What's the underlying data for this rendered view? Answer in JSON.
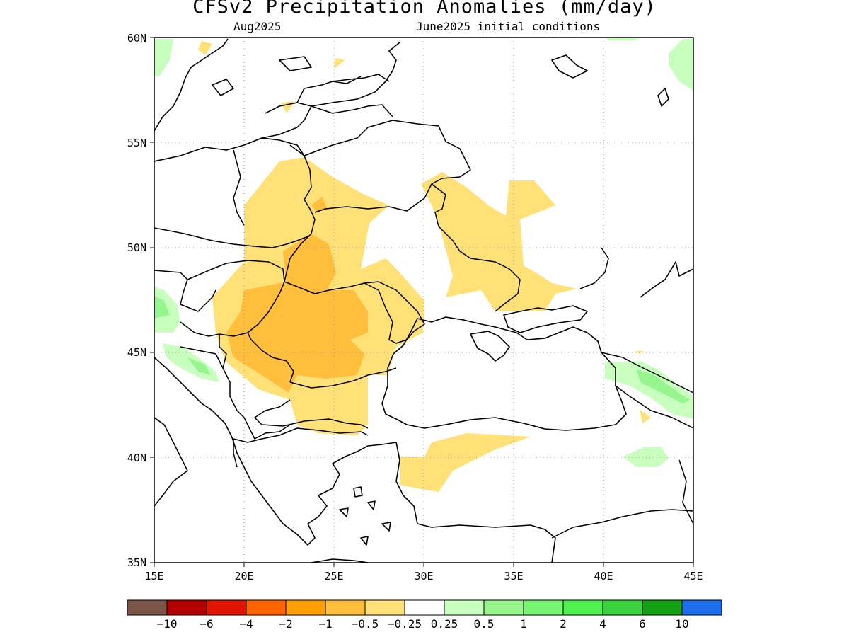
{
  "title": "CFSv2 Precipitation Anomalies (mm/day)",
  "valid_month": "Aug2025",
  "initial_conditions": "June2025 initial conditions",
  "map": {
    "lon_range": [
      15,
      45
    ],
    "lat_range": [
      35,
      60
    ],
    "lon_ticks": [
      "15E",
      "20E",
      "25E",
      "30E",
      "35E",
      "40E",
      "45E"
    ],
    "lat_ticks": [
      "35N",
      "40N",
      "45N",
      "50N",
      "55N",
      "60N"
    ],
    "gridlines": "dotted"
  },
  "colorbar": {
    "labels": [
      "-10",
      "-6",
      "-4",
      "-2",
      "-1",
      "-0.5",
      "-0.25",
      "0.25",
      "0.5",
      "1",
      "2",
      "4",
      "6",
      "10"
    ],
    "colors": [
      "#7a5548",
      "#b40000",
      "#e01400",
      "#ff6400",
      "#ffa000",
      "#ffbe3c",
      "#ffe178",
      "#ffffff",
      "#c8ffbe",
      "#96f58c",
      "#78f573",
      "#50f050",
      "#37d23c",
      "#14a014",
      "#1e6eeb"
    ]
  }
}
